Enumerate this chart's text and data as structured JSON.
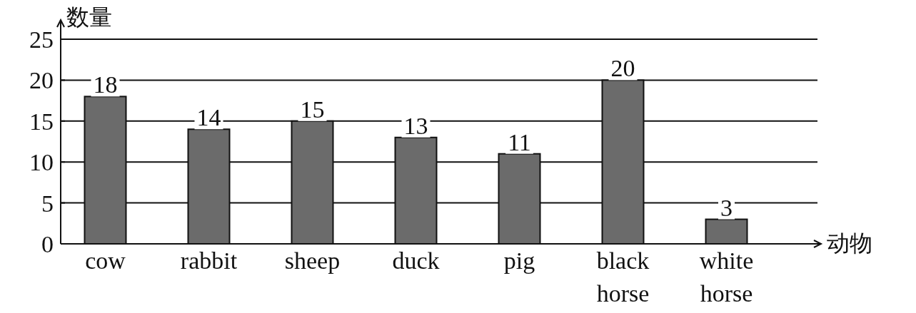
{
  "chart_data": {
    "type": "bar",
    "xlabel": "动物",
    "ylabel": "数量",
    "categories": [
      "cow",
      "rabbit",
      "sheep",
      "duck",
      "pig",
      "black horse",
      "white horse"
    ],
    "values": [
      18,
      14,
      15,
      13,
      11,
      20,
      3
    ],
    "color": "#6b6b6b",
    "ylim": [
      0,
      25
    ],
    "yticks": [
      0,
      5,
      10,
      15,
      20,
      25
    ],
    "grid": "y",
    "data_labels": true
  }
}
